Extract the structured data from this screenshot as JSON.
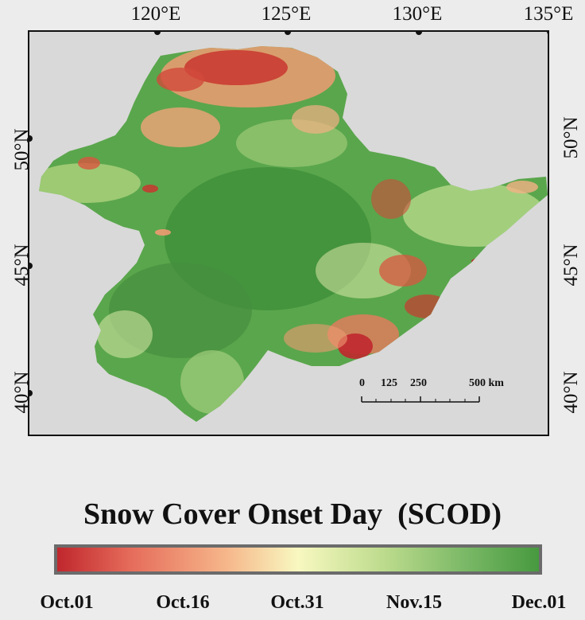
{
  "lon_labels": [
    "120°E",
    "125°E",
    "130°E",
    "135°E"
  ],
  "lat_labels": [
    "50°N",
    "45°N",
    "40°N"
  ],
  "scalebar": {
    "ticks": [
      "0",
      "125",
      "250",
      "500 km"
    ]
  },
  "legend": {
    "title": "Snow Cover Onset Day  (SCOD)",
    "ticks": [
      "Oct.01",
      "Oct.16",
      "Oct.31",
      "Nov.15",
      "Dec.01"
    ],
    "colors": [
      "#c0272d",
      "#e56b5a",
      "#f8f8c0",
      "#79b866",
      "#47993f"
    ]
  },
  "map": {
    "region_color": "#5aa64c",
    "background": "#d9d9d9"
  }
}
